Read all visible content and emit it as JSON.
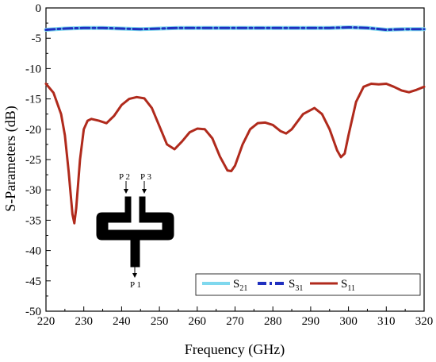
{
  "chart_data": {
    "type": "line",
    "xlabel": "Frequency (GHz)",
    "ylabel": "S-Parameters (dB)",
    "xlim": [
      220,
      320
    ],
    "ylim": [
      -50,
      0
    ],
    "xticks": [
      220,
      230,
      240,
      250,
      260,
      270,
      280,
      290,
      300,
      310,
      320
    ],
    "yticks": [
      0,
      -5,
      -10,
      -15,
      -20,
      -25,
      -30,
      -35,
      -40,
      -45,
      -50
    ],
    "grid": false,
    "legend_position": "bottom-right",
    "series": [
      {
        "name": "S21",
        "label_main": "S",
        "label_sub": "21",
        "color": "#7fd8ee",
        "style": "solid",
        "x": [
          220,
          225,
          230,
          235,
          240,
          245,
          250,
          255,
          260,
          265,
          270,
          275,
          280,
          285,
          290,
          295,
          300,
          305,
          310,
          315,
          320
        ],
        "y": [
          -3.6,
          -3.4,
          -3.3,
          -3.3,
          -3.4,
          -3.5,
          -3.4,
          -3.3,
          -3.3,
          -3.3,
          -3.3,
          -3.3,
          -3.3,
          -3.3,
          -3.3,
          -3.3,
          -3.2,
          -3.3,
          -3.6,
          -3.5,
          -3.5
        ]
      },
      {
        "name": "S31",
        "label_main": "S",
        "label_sub": "31",
        "color": "#1f2fbf",
        "style": "dashdot",
        "x": [
          220,
          225,
          230,
          235,
          240,
          245,
          250,
          255,
          260,
          265,
          270,
          275,
          280,
          285,
          290,
          295,
          300,
          305,
          310,
          315,
          320
        ],
        "y": [
          -3.6,
          -3.4,
          -3.3,
          -3.3,
          -3.4,
          -3.5,
          -3.4,
          -3.3,
          -3.3,
          -3.3,
          -3.3,
          -3.3,
          -3.3,
          -3.3,
          -3.3,
          -3.3,
          -3.2,
          -3.3,
          -3.6,
          -3.5,
          -3.5
        ]
      },
      {
        "name": "S11",
        "label_main": "S",
        "label_sub": "11",
        "color": "#b02a1c",
        "style": "solid",
        "x": [
          220,
          222,
          224,
          225,
          226,
          227,
          227.5,
          228,
          229,
          230,
          231,
          232,
          234,
          236,
          238,
          240,
          242,
          244,
          246,
          248,
          250,
          252,
          254,
          256,
          258,
          260,
          262,
          264,
          266,
          268,
          269,
          270,
          272,
          274,
          276,
          278,
          280,
          282,
          283.5,
          285,
          288,
          291,
          293,
          295,
          297,
          298,
          299,
          300,
          302,
          304,
          306,
          308,
          310,
          312,
          314,
          316,
          318,
          320
        ],
        "y": [
          -12.5,
          -14,
          -17.5,
          -21,
          -27,
          -34,
          -35.5,
          -33,
          -25,
          -20,
          -18.6,
          -18.3,
          -18.6,
          -19,
          -17.8,
          -16,
          -15,
          -14.7,
          -14.9,
          -16.5,
          -19.5,
          -22.5,
          -23.3,
          -22,
          -20.5,
          -19.9,
          -20,
          -21.5,
          -24.5,
          -26.8,
          -26.9,
          -26,
          -22.5,
          -20,
          -19,
          -18.9,
          -19.3,
          -20.3,
          -20.7,
          -20,
          -17.5,
          -16.5,
          -17.5,
          -20,
          -23.5,
          -24.6,
          -24,
          -21,
          -15.5,
          -13,
          -12.5,
          -12.6,
          -12.5,
          -13,
          -13.6,
          -13.9,
          -13.5,
          -13.0
        ]
      }
    ],
    "inset": {
      "port_labels": [
        "P 2",
        "P 3",
        "P 1"
      ]
    }
  }
}
